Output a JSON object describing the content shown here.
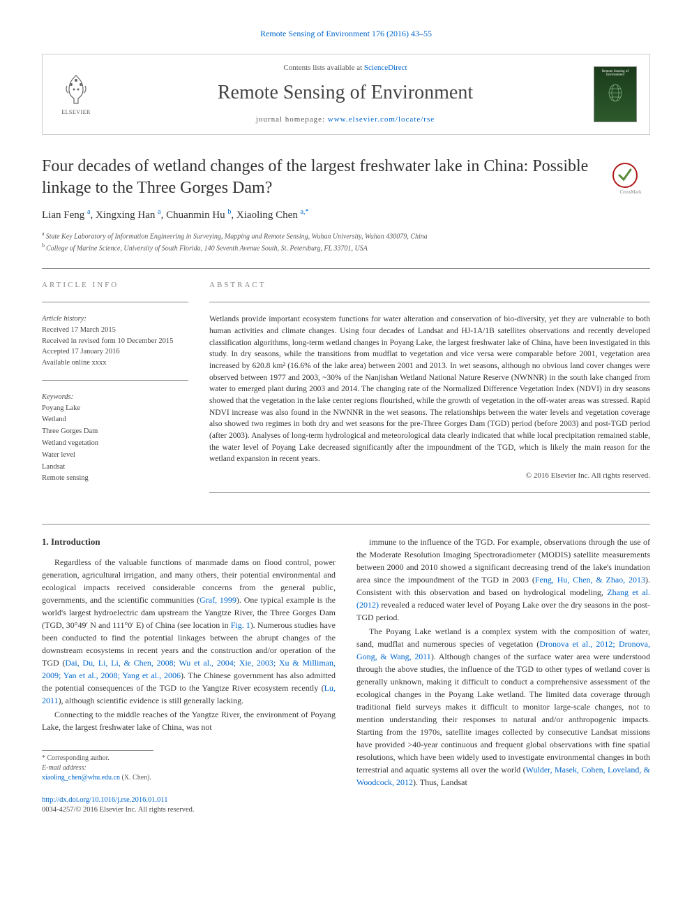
{
  "top_citation": "Remote Sensing of Environment 176 (2016) 43–55",
  "header": {
    "contents_prefix": "Contents lists available at ",
    "contents_link": "ScienceDirect",
    "journal_name": "Remote Sensing of Environment",
    "homepage_prefix": "journal homepage: ",
    "homepage_link": "www.elsevier.com/locate/rse",
    "publisher_name": "ELSEVIER",
    "cover_text": "Remote Sensing of Environment"
  },
  "article": {
    "title": "Four decades of wetland changes of the largest freshwater lake in China: Possible linkage to the Three Gorges Dam?",
    "crossmark_label": "CrossMark",
    "authors_html": [
      {
        "name": "Lian Feng",
        "aff": "a"
      },
      {
        "name": "Xingxing Han",
        "aff": "a"
      },
      {
        "name": "Chuanmin Hu",
        "aff": "b"
      },
      {
        "name": "Xiaoling Chen",
        "aff": "a,*"
      }
    ],
    "affiliations": [
      {
        "marker": "a",
        "text": "State Key Laboratory of Information Engineering in Surveying, Mapping and Remote Sensing, Wuhan University, Wuhan 430079, China"
      },
      {
        "marker": "b",
        "text": "College of Marine Science, University of South Florida, 140 Seventh Avenue South, St. Petersburg, FL 33701, USA"
      }
    ]
  },
  "info": {
    "heading": "ARTICLE INFO",
    "history_label": "Article history:",
    "history": [
      "Received 17 March 2015",
      "Received in revised form 10 December 2015",
      "Accepted 17 January 2016",
      "Available online xxxx"
    ],
    "keywords_label": "Keywords:",
    "keywords": [
      "Poyang Lake",
      "Wetland",
      "Three Gorges Dam",
      "Wetland vegetation",
      "Water level",
      "Landsat",
      "Remote sensing"
    ]
  },
  "abstract": {
    "heading": "ABSTRACT",
    "text": "Wetlands provide important ecosystem functions for water alteration and conservation of bio-diversity, yet they are vulnerable to both human activities and climate changes. Using four decades of Landsat and HJ-1A/1B satellites observations and recently developed classification algorithms, long-term wetland changes in Poyang Lake, the largest freshwater lake of China, have been investigated in this study. In dry seasons, while the transitions from mudflat to vegetation and vice versa were comparable before 2001, vegetation area increased by 620.8 km² (16.6% of the lake area) between 2001 and 2013. In wet seasons, although no obvious land cover changes were observed between 1977 and 2003, ~30% of the Nanjishan Wetland National Nature Reserve (NWNNR) in the south lake changed from water to emerged plant during 2003 and 2014. The changing rate of the Normalized Difference Vegetation Index (NDVI) in dry seasons showed that the vegetation in the lake center regions flourished, while the growth of vegetation in the off-water areas was stressed. Rapid NDVI increase was also found in the NWNNR in the wet seasons. The relationships between the water levels and vegetation coverage also showed two regimes in both dry and wet seasons for the pre-Three Gorges Dam (TGD) period (before 2003) and post-TGD period (after 2003). Analyses of long-term hydrological and meteorological data clearly indicated that while local precipitation remained stable, the water level of Poyang Lake decreased significantly after the impoundment of the TGD, which is likely the main reason for the wetland expansion in recent years.",
    "copyright": "© 2016 Elsevier Inc. All rights reserved."
  },
  "body": {
    "section_heading": "1. Introduction",
    "col1": [
      {
        "type": "p",
        "segs": [
          {
            "t": "Regardless of the valuable functions of manmade dams on flood control, power generation, agricultural irrigation, and many others, their potential environmental and ecological impacts received considerable concerns from the general public, governments, and the scientific communities ("
          },
          {
            "t": "Graf, 1999",
            "link": true
          },
          {
            "t": "). One typical example is the world's largest hydroelectric dam upstream the Yangtze River, the Three Gorges Dam (TGD, 30°49′ N and 111°0′ E) of China (see location in "
          },
          {
            "t": "Fig. 1",
            "link": true
          },
          {
            "t": "). Numerous studies have been conducted to find the potential linkages between the abrupt changes of the downstream ecosystems in recent years and the construction and/or operation of the TGD ("
          },
          {
            "t": "Dai, Du, Li, Li, & Chen, 2008; Wu et al., 2004; Xie, 2003; Xu & Milliman, 2009; Yan et al., 2008; Yang et al., 2006",
            "link": true
          },
          {
            "t": "). The Chinese government has also admitted the potential consequences of the TGD to the Yangtze River ecosystem recently ("
          },
          {
            "t": "Lu, 2011",
            "link": true
          },
          {
            "t": "), although scientific evidence is still generally lacking."
          }
        ]
      },
      {
        "type": "p",
        "segs": [
          {
            "t": "Connecting to the middle reaches of the Yangtze River, the environment of Poyang Lake, the largest freshwater lake of China, was not"
          }
        ]
      }
    ],
    "col2": [
      {
        "type": "p",
        "segs": [
          {
            "t": "immune to the influence of the TGD. For example, observations through the use of the Moderate Resolution Imaging Spectroradiometer (MODIS) satellite measurements between 2000 and 2010 showed a significant decreasing trend of the lake's inundation area since the impoundment of the TGD in 2003 ("
          },
          {
            "t": "Feng, Hu, Chen, & Zhao, 2013",
            "link": true
          },
          {
            "t": "). Consistent with this observation and based on hydrological modeling, "
          },
          {
            "t": "Zhang et al. (2012)",
            "link": true
          },
          {
            "t": " revealed a reduced water level of Poyang Lake over the dry seasons in the post-TGD period."
          }
        ]
      },
      {
        "type": "p",
        "segs": [
          {
            "t": "The Poyang Lake wetland is a complex system with the composition of water, sand, mudflat and numerous species of vegetation ("
          },
          {
            "t": "Dronova et al., 2012; Dronova, Gong, & Wang, 2011",
            "link": true
          },
          {
            "t": "). Although changes of the surface water area were understood through the above studies, the influence of the TGD to other types of wetland cover is generally unknown, making it difficult to conduct a comprehensive assessment of the ecological changes in the Poyang Lake wetland. The limited data coverage through traditional field surveys makes it difficult to monitor large-scale changes, not to mention understanding their responses to natural and/or anthropogenic impacts. Starting from the 1970s, satellite images collected by consecutive Landsat missions have provided >40-year continuous and frequent global observations with fine spatial resolutions, which have been widely used to investigate environmental changes in both terrestrial and aquatic systems all over the world ("
          },
          {
            "t": "Wulder, Masek, Cohen, Loveland, & Woodcock, 2012",
            "link": true
          },
          {
            "t": "). Thus, Landsat"
          }
        ]
      }
    ]
  },
  "footer": {
    "corr_label": "* Corresponding author.",
    "email_label": "E-mail address: ",
    "email": "xiaoling_chen@whu.edu.cn",
    "email_suffix": " (X. Chen).",
    "doi": "http://dx.doi.org/10.1016/j.rse.2016.01.011",
    "issn": "0034-4257/© 2016 Elsevier Inc. All rights reserved."
  },
  "colors": {
    "link": "#0066cc",
    "text": "#333333",
    "muted": "#888888",
    "border": "#cccccc"
  }
}
